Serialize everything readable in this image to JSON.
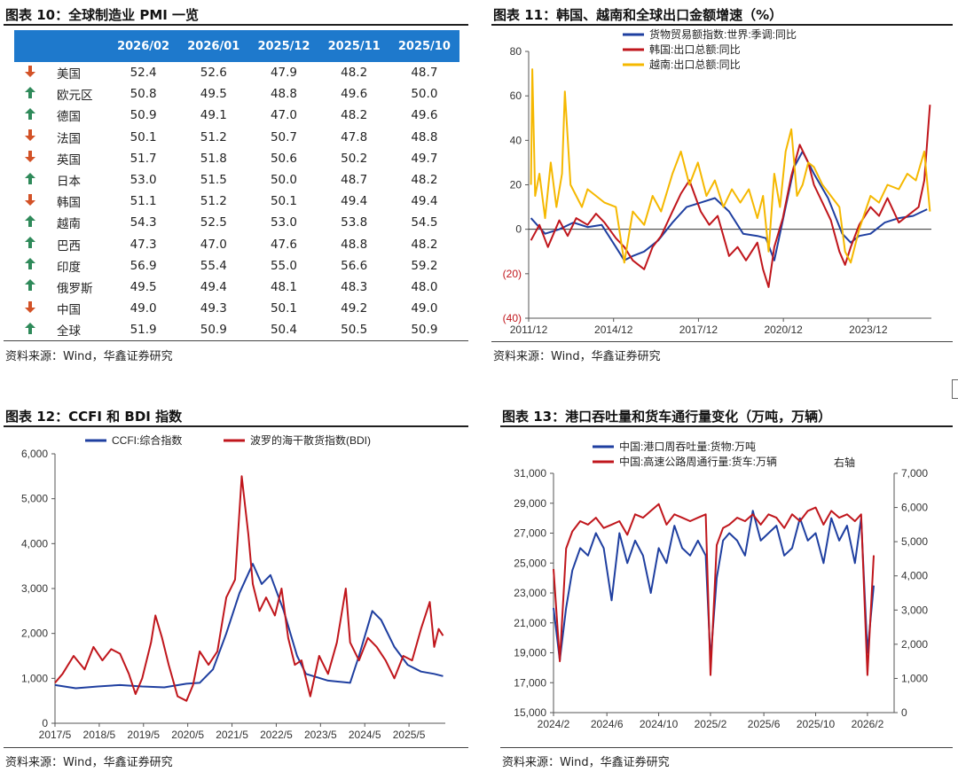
{
  "table_panel": {
    "title": "图表 10：全球制造业 PMI 一览",
    "source": "资料来源：Wind，华鑫证券研究",
    "headers": [
      "",
      "",
      "2026/02",
      "2026/01",
      "2025/12",
      "2025/11",
      "2025/10"
    ],
    "rows": [
      {
        "dir": "down",
        "country": "美国",
        "vals": [
          "52.4",
          "52.6",
          "47.9",
          "48.2",
          "48.7"
        ]
      },
      {
        "dir": "up",
        "country": "欧元区",
        "vals": [
          "50.8",
          "49.5",
          "48.8",
          "49.6",
          "50.0"
        ]
      },
      {
        "dir": "up",
        "country": "德国",
        "vals": [
          "50.9",
          "49.1",
          "47.0",
          "48.2",
          "49.6"
        ]
      },
      {
        "dir": "down",
        "country": "法国",
        "vals": [
          "50.1",
          "51.2",
          "50.7",
          "47.8",
          "48.8"
        ]
      },
      {
        "dir": "down",
        "country": "英国",
        "vals": [
          "51.7",
          "51.8",
          "50.6",
          "50.2",
          "49.7"
        ]
      },
      {
        "dir": "up",
        "country": "日本",
        "vals": [
          "53.0",
          "51.5",
          "50.0",
          "48.7",
          "48.2"
        ]
      },
      {
        "dir": "down",
        "country": "韩国",
        "vals": [
          "51.1",
          "51.2",
          "50.1",
          "49.4",
          "49.4"
        ]
      },
      {
        "dir": "up",
        "country": "越南",
        "vals": [
          "54.3",
          "52.5",
          "53.0",
          "53.8",
          "54.5"
        ]
      },
      {
        "dir": "up",
        "country": "巴西",
        "vals": [
          "47.3",
          "47.0",
          "47.6",
          "48.8",
          "48.2"
        ]
      },
      {
        "dir": "up",
        "country": "印度",
        "vals": [
          "56.9",
          "55.4",
          "55.0",
          "56.6",
          "59.2"
        ]
      },
      {
        "dir": "up",
        "country": "俄罗斯",
        "vals": [
          "49.5",
          "49.4",
          "48.1",
          "48.3",
          "48.0"
        ]
      },
      {
        "dir": "down",
        "country": "中国",
        "vals": [
          "49.0",
          "49.3",
          "50.1",
          "49.2",
          "49.0"
        ]
      },
      {
        "dir": "up",
        "country": "全球",
        "vals": [
          "51.9",
          "50.9",
          "50.4",
          "50.5",
          "50.9"
        ]
      }
    ],
    "arrow_glyphs": {
      "up": "🡑",
      "down": "🡓"
    }
  },
  "chart_data": [
    {
      "id": "chart11",
      "type": "line",
      "title": "图表 11：韩国、越南和全球出口金额增速（%）",
      "source": "资料来源：Wind，华鑫证券研究",
      "xlabel": "",
      "ylabel": "",
      "x_range": [
        2011.92,
        2026.15
      ],
      "ylim": [
        -40,
        80
      ],
      "yticks": [
        -40,
        -20,
        0,
        20,
        40,
        60,
        80
      ],
      "ytick_labels": [
        "(40)",
        "(20)",
        "0",
        "20",
        "40",
        "60",
        "80"
      ],
      "xtick_positions": [
        2011.92,
        2014.92,
        2017.92,
        2020.92,
        2023.92
      ],
      "xtick_labels": [
        "2011/12",
        "2014/12",
        "2017/12",
        "2020/12",
        "2023/12"
      ],
      "legend": "top",
      "series": [
        {
          "name": "货物贸易额指数:世界:季调:同比",
          "color": "#1f3fa0",
          "x": [
            2012.0,
            2012.5,
            2013.0,
            2013.5,
            2014.0,
            2014.5,
            2015.0,
            2015.3,
            2015.6,
            2016.0,
            2016.5,
            2017.0,
            2017.5,
            2018.0,
            2018.5,
            2019.0,
            2019.5,
            2020.0,
            2020.3,
            2020.6,
            2021.0,
            2021.3,
            2021.6,
            2022.0,
            2022.5,
            2023.0,
            2023.3,
            2023.6,
            2024.0,
            2024.5,
            2025.0,
            2025.5,
            2026.0
          ],
          "y": [
            5,
            -2,
            0,
            3,
            1,
            2,
            -8,
            -14,
            -12,
            -10,
            -5,
            3,
            10,
            12,
            14,
            8,
            -2,
            -3,
            -4,
            -14,
            10,
            28,
            35,
            25,
            14,
            -2,
            -6,
            -3,
            -2,
            3,
            5,
            6,
            9
          ]
        },
        {
          "name": "韩国:出口总额:同比",
          "color": "#c0161c",
          "x": [
            2012.0,
            2012.3,
            2012.6,
            2013.0,
            2013.3,
            2013.6,
            2014.0,
            2014.3,
            2014.6,
            2015.0,
            2015.3,
            2015.6,
            2016.0,
            2016.3,
            2016.6,
            2017.0,
            2017.3,
            2017.6,
            2018.0,
            2018.3,
            2018.6,
            2019.0,
            2019.3,
            2019.6,
            2020.0,
            2020.2,
            2020.4,
            2020.6,
            2020.9,
            2021.2,
            2021.5,
            2021.8,
            2022.0,
            2022.3,
            2022.6,
            2022.9,
            2023.1,
            2023.3,
            2023.6,
            2024.0,
            2024.3,
            2024.6,
            2025.0,
            2025.4,
            2025.7,
            2025.9,
            2026.1
          ],
          "y": [
            -5,
            2,
            -8,
            4,
            -3,
            5,
            2,
            7,
            3,
            -4,
            -8,
            -14,
            -18,
            -8,
            -3,
            8,
            16,
            22,
            8,
            2,
            6,
            -12,
            -8,
            -14,
            -6,
            -18,
            -26,
            -8,
            5,
            24,
            38,
            30,
            20,
            12,
            4,
            -10,
            -16,
            -8,
            2,
            10,
            6,
            14,
            3,
            7,
            10,
            22,
            56
          ]
        },
        {
          "name": "越南:出口总额:同比",
          "color": "#f5b800",
          "x": [
            2012.0,
            2012.05,
            2012.15,
            2012.3,
            2012.5,
            2012.7,
            2012.9,
            2013.1,
            2013.2,
            2013.4,
            2013.6,
            2013.8,
            2014.0,
            2014.3,
            2014.6,
            2015.0,
            2015.3,
            2015.6,
            2016.0,
            2016.3,
            2016.6,
            2017.0,
            2017.3,
            2017.6,
            2017.9,
            2018.2,
            2018.5,
            2018.8,
            2019.1,
            2019.4,
            2019.7,
            2020.0,
            2020.2,
            2020.4,
            2020.6,
            2020.8,
            2021.0,
            2021.2,
            2021.4,
            2021.6,
            2021.8,
            2022.0,
            2022.3,
            2022.6,
            2022.9,
            2023.1,
            2023.3,
            2023.6,
            2024.0,
            2024.3,
            2024.6,
            2025.0,
            2025.3,
            2025.6,
            2025.9,
            2026.1
          ],
          "y": [
            20,
            72,
            15,
            25,
            5,
            30,
            10,
            25,
            62,
            20,
            15,
            10,
            18,
            15,
            12,
            10,
            -15,
            8,
            2,
            15,
            8,
            25,
            35,
            20,
            30,
            15,
            22,
            10,
            18,
            12,
            18,
            5,
            15,
            -10,
            25,
            10,
            35,
            45,
            15,
            20,
            30,
            28,
            20,
            15,
            10,
            -10,
            -15,
            0,
            15,
            12,
            20,
            18,
            25,
            22,
            35,
            8
          ]
        }
      ]
    },
    {
      "id": "chart12",
      "type": "line",
      "title": "图表 12：CCFI 和 BDI 指数",
      "source": "资料来源：Wind，华鑫证券研究",
      "xlabel": "",
      "ylabel": "",
      "x_range": [
        2017.33,
        2026.15
      ],
      "ylim": [
        0,
        6000
      ],
      "yticks": [
        0,
        1000,
        2000,
        3000,
        4000,
        5000,
        6000
      ],
      "ytick_labels": [
        "0",
        "1,000",
        "2,000",
        "3,000",
        "4,000",
        "5,000",
        "6,000"
      ],
      "xtick_positions": [
        2017.33,
        2018.33,
        2019.33,
        2020.33,
        2021.33,
        2022.33,
        2023.33,
        2024.33,
        2025.33
      ],
      "xtick_labels": [
        "2017/5",
        "2018/5",
        "2019/5",
        "2020/5",
        "2021/5",
        "2022/5",
        "2023/5",
        "2024/5",
        "2025/5"
      ],
      "legend": "top",
      "series": [
        {
          "name": "CCFI:综合指数",
          "color": "#1f3fa0",
          "x": [
            2017.33,
            2017.8,
            2018.3,
            2018.8,
            2019.3,
            2019.8,
            2020.3,
            2020.6,
            2020.9,
            2021.2,
            2021.5,
            2021.8,
            2022.0,
            2022.2,
            2022.5,
            2022.8,
            2023.0,
            2023.5,
            2024.0,
            2024.2,
            2024.5,
            2024.7,
            2025.0,
            2025.3,
            2025.6,
            2025.9,
            2026.1
          ],
          "y": [
            850,
            780,
            820,
            850,
            820,
            800,
            880,
            900,
            1200,
            2000,
            2900,
            3550,
            3100,
            3300,
            2500,
            1500,
            1100,
            950,
            900,
            1500,
            2500,
            2300,
            1700,
            1300,
            1150,
            1100,
            1050
          ]
        },
        {
          "name": "波罗的海干散货指数(BDI)",
          "color": "#c0161c",
          "x": [
            2017.33,
            2017.5,
            2017.75,
            2018.0,
            2018.2,
            2018.4,
            2018.6,
            2018.8,
            2019.0,
            2019.15,
            2019.3,
            2019.5,
            2019.6,
            2019.75,
            2019.9,
            2020.1,
            2020.3,
            2020.45,
            2020.6,
            2020.8,
            2021.0,
            2021.2,
            2021.4,
            2021.55,
            2021.7,
            2021.8,
            2021.95,
            2022.1,
            2022.3,
            2022.45,
            2022.6,
            2022.75,
            2022.9,
            2023.1,
            2023.3,
            2023.5,
            2023.7,
            2023.9,
            2024.0,
            2024.2,
            2024.4,
            2024.6,
            2024.8,
            2025.0,
            2025.2,
            2025.4,
            2025.6,
            2025.8,
            2025.9,
            2026.0,
            2026.1
          ],
          "y": [
            900,
            1100,
            1500,
            1200,
            1700,
            1400,
            1650,
            1550,
            1100,
            650,
            1000,
            1800,
            2400,
            1900,
            1300,
            600,
            500,
            850,
            1600,
            1300,
            1600,
            2800,
            3200,
            5500,
            4200,
            3100,
            2500,
            2800,
            2400,
            3000,
            1900,
            1300,
            1400,
            600,
            1500,
            1100,
            1800,
            3000,
            1800,
            1400,
            1900,
            1700,
            1400,
            1000,
            1500,
            1400,
            2100,
            2700,
            1700,
            2100,
            1950
          ]
        }
      ]
    },
    {
      "id": "chart13",
      "type": "line",
      "title": "图表 13：港口吞吐量和货车通行量变化（万吨，万辆）",
      "source": "资料来源：Wind，华鑫证券研究",
      "xlabel": "",
      "ylabel": "",
      "x_range": [
        2024.08,
        2026.25
      ],
      "ylim": [
        15000,
        31000
      ],
      "yticks": [
        15000,
        17000,
        19000,
        21000,
        23000,
        25000,
        27000,
        29000,
        31000
      ],
      "ytick_labels": [
        "15,000",
        "17,000",
        "19,000",
        "21,000",
        "23,000",
        "25,000",
        "27,000",
        "29,000",
        "31,000"
      ],
      "ylim_right": [
        0,
        7000
      ],
      "yticks_right": [
        0,
        1000,
        2000,
        3000,
        4000,
        5000,
        6000,
        7000
      ],
      "ytick_labels_right": [
        "0",
        "1,000",
        "2,000",
        "3,000",
        "4,000",
        "5,000",
        "6,000",
        "7,000"
      ],
      "right_axis_label": "右轴",
      "xtick_positions": [
        2024.08,
        2024.42,
        2024.75,
        2025.08,
        2025.42,
        2025.75,
        2026.08
      ],
      "xtick_labels": [
        "2024/2",
        "2024/6",
        "2024/10",
        "2025/2",
        "2025/6",
        "2025/10",
        "2026/2"
      ],
      "legend": "top",
      "series": [
        {
          "name": "中国:港口周吞吐量:货物:万吨",
          "color": "#1f3fa0",
          "axis": "left",
          "x": [
            2024.08,
            2024.12,
            2024.16,
            2024.2,
            2024.25,
            2024.3,
            2024.35,
            2024.4,
            2024.45,
            2024.5,
            2024.55,
            2024.6,
            2024.65,
            2024.7,
            2024.75,
            2024.8,
            2024.85,
            2024.9,
            2024.95,
            2025.0,
            2025.05,
            2025.08,
            2025.12,
            2025.16,
            2025.2,
            2025.25,
            2025.3,
            2025.35,
            2025.4,
            2025.45,
            2025.5,
            2025.55,
            2025.6,
            2025.65,
            2025.7,
            2025.75,
            2025.8,
            2025.85,
            2025.9,
            2025.95,
            2026.0,
            2026.04,
            2026.08,
            2026.12
          ],
          "y": [
            22000,
            18500,
            22000,
            24500,
            26000,
            25500,
            27000,
            26000,
            22500,
            27000,
            25000,
            26500,
            25500,
            23000,
            26000,
            25000,
            27500,
            26000,
            25500,
            26500,
            25500,
            18500,
            24000,
            26500,
            27000,
            26500,
            25500,
            28500,
            26500,
            27000,
            27500,
            25500,
            26000,
            28000,
            26500,
            27000,
            25000,
            28000,
            26500,
            27500,
            25000,
            28000,
            19000,
            23500
          ]
        },
        {
          "name": "中国:高速公路周通行量:货车:万辆",
          "color": "#c0161c",
          "axis": "right",
          "x": [
            2024.08,
            2024.12,
            2024.16,
            2024.2,
            2024.25,
            2024.3,
            2024.35,
            2024.4,
            2024.45,
            2024.5,
            2024.55,
            2024.6,
            2024.65,
            2024.7,
            2024.75,
            2024.8,
            2024.85,
            2024.9,
            2024.95,
            2025.0,
            2025.05,
            2025.08,
            2025.12,
            2025.16,
            2025.2,
            2025.25,
            2025.3,
            2025.35,
            2025.4,
            2025.45,
            2025.5,
            2025.55,
            2025.6,
            2025.65,
            2025.7,
            2025.75,
            2025.8,
            2025.85,
            2025.9,
            2025.95,
            2026.0,
            2026.04,
            2026.08,
            2026.12
          ],
          "y": [
            4200,
            1500,
            4800,
            5300,
            5600,
            5500,
            5700,
            5400,
            5500,
            5600,
            5200,
            5800,
            5700,
            5900,
            6100,
            5500,
            5800,
            5700,
            5600,
            5700,
            5800,
            1100,
            4900,
            5400,
            5500,
            5700,
            5600,
            5800,
            5500,
            5800,
            5700,
            5400,
            5800,
            5600,
            5900,
            6000,
            5500,
            5900,
            5700,
            5800,
            5600,
            5800,
            1100,
            4600
          ]
        }
      ]
    }
  ]
}
